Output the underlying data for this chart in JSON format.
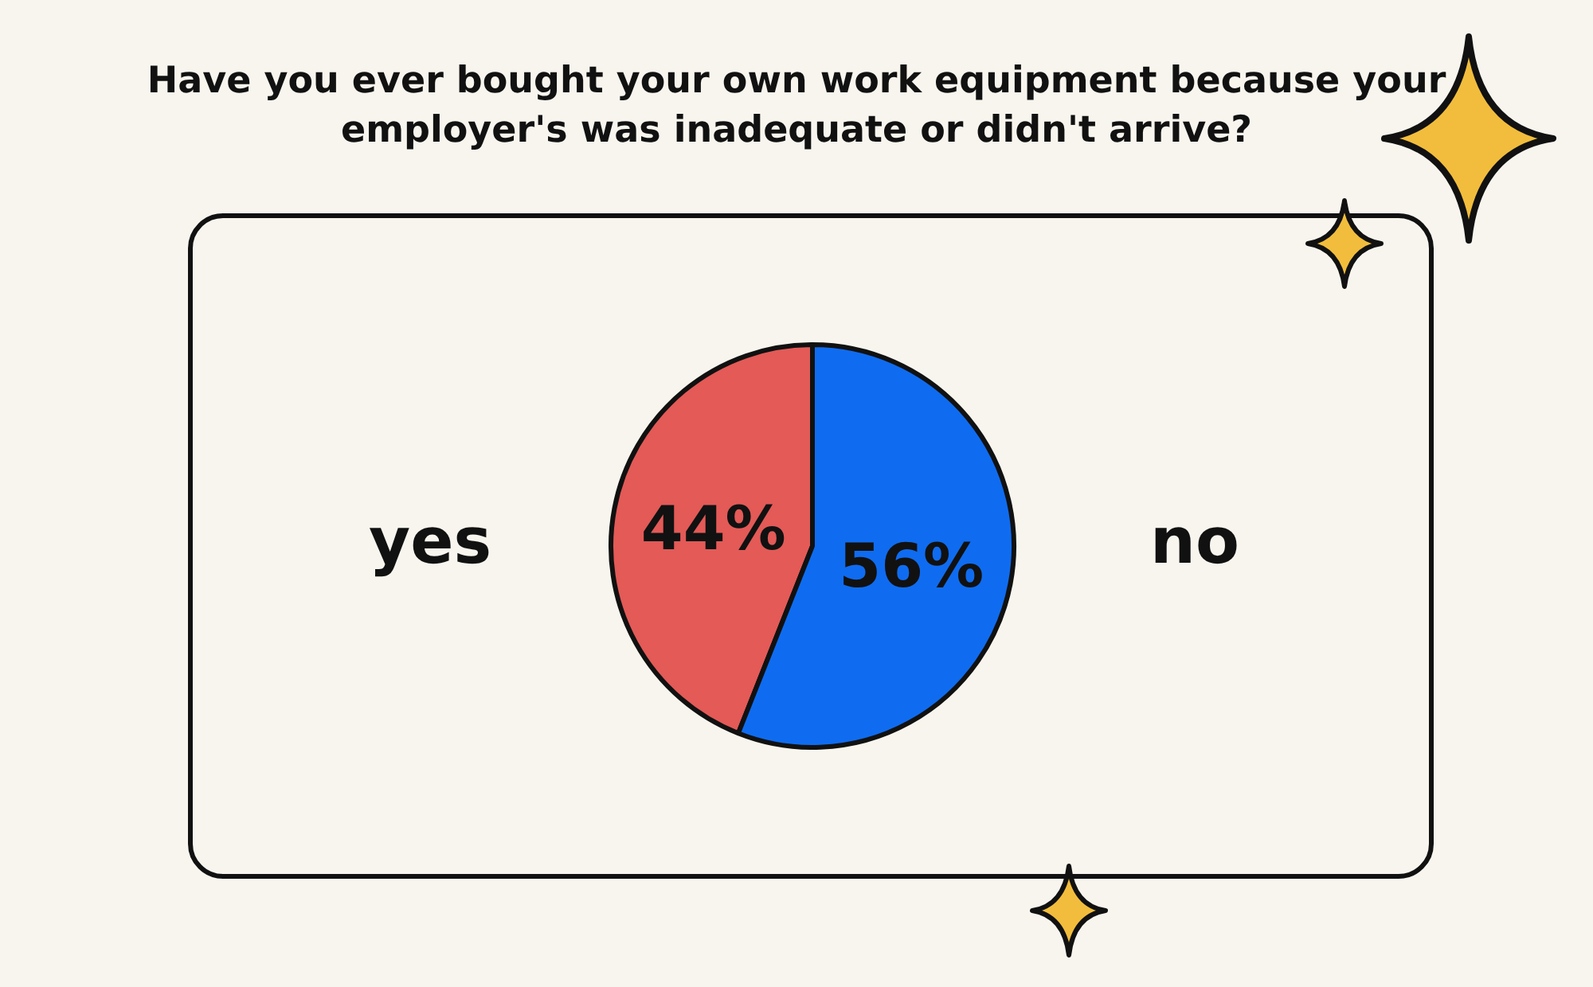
{
  "chart_data": {
    "type": "pie",
    "title": "Have you ever bought your own work equipment because your employer's was inadequate or didn't arrive?",
    "categories": [
      "yes",
      "no"
    ],
    "values": [
      44,
      56
    ],
    "colors": [
      "#e35a57",
      "#0f6cf0"
    ],
    "value_labels": [
      "44%",
      "56%"
    ],
    "legend": false
  }
}
